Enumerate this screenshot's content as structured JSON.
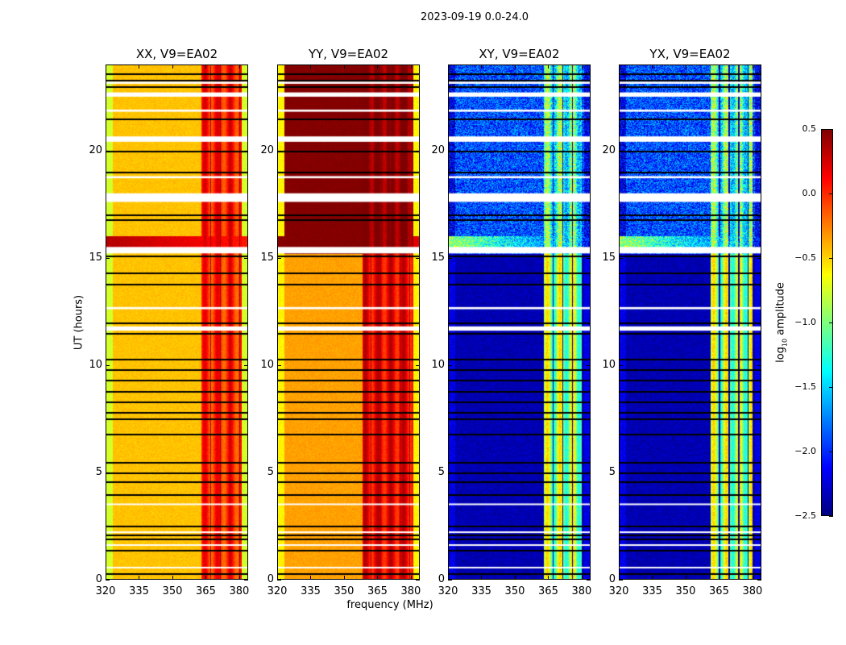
{
  "chart_data": {
    "type": "heatmap",
    "title": "2023-09-19 0.0-24.0",
    "xlabel": "frequency (MHz)",
    "ylabel": "UT (hours)",
    "xlim": [
      320,
      384
    ],
    "ylim": [
      0,
      24
    ],
    "xticks": [
      320,
      335,
      350,
      365,
      380
    ],
    "yticks": [
      0,
      5,
      10,
      15,
      20
    ],
    "colormap": "jet",
    "colorbar": {
      "label_main": "log",
      "label_sub": "10",
      "label_rest": " amplitude",
      "range": [
        -2.5,
        0.5
      ],
      "ticks": [
        "0.5",
        "0.0",
        "−0.5",
        "−1.0",
        "−1.5",
        "−2.0",
        "−2.5"
      ],
      "tick_values": [
        0.5,
        0.0,
        -0.5,
        -1.0,
        -1.5,
        -2.0,
        -2.5
      ]
    },
    "panels": [
      {
        "title": "XX, V9=EA02",
        "base": -0.45,
        "edge": -0.75,
        "band": [
          363,
          381
        ],
        "band_level": 0.0,
        "upper_base": -0.45,
        "upper_band_level": 0.05,
        "storm": [
          15.4,
          16.0
        ],
        "storm_level": 0.35
      },
      {
        "title": "YY, V9=EA02",
        "base": -0.35,
        "edge": -0.6,
        "band": [
          358,
          381
        ],
        "band_level": 0.15,
        "upper_base": 0.5,
        "upper_band_level": 0.5,
        "storm": [
          15.4,
          16.0
        ],
        "storm_level": 0.5
      },
      {
        "title": "XY, V9=EA02",
        "base": -2.35,
        "edge": -2.2,
        "band": [
          363,
          380
        ],
        "band_level": -0.9,
        "upper_base": -1.9,
        "upper_band_level": -1.2,
        "storm": [
          15.4,
          16.0
        ],
        "storm_level": -0.9
      },
      {
        "title": "YX, V9=EA02",
        "base": -2.35,
        "edge": -2.2,
        "band": [
          361,
          380
        ],
        "band_level": -0.9,
        "upper_base": -1.9,
        "upper_band_level": -1.2,
        "storm": [
          15.4,
          16.0
        ],
        "storm_level": -0.9
      }
    ],
    "flagged_rows_ut": [
      0.3,
      1.4,
      1.9,
      2.1,
      2.5,
      4.0,
      4.6,
      5.0,
      5.5,
      6.8,
      7.5,
      7.8,
      8.3,
      8.8,
      9.3,
      9.8,
      10.3,
      11.5,
      12.0,
      13.8,
      14.3,
      15.1,
      16.8,
      17.0,
      19.0,
      20.0,
      21.5,
      23.0,
      23.3,
      23.6
    ],
    "gaps_ut": [
      [
        0.55,
        0.6
      ],
      [
        1.6,
        1.65
      ],
      [
        2.2,
        2.25
      ],
      [
        3.5,
        3.55
      ],
      [
        11.6,
        11.8
      ],
      [
        12.6,
        12.7
      ],
      [
        15.2,
        15.5
      ],
      [
        17.6,
        18.0
      ],
      [
        18.7,
        18.8
      ],
      [
        20.4,
        20.65
      ],
      [
        21.8,
        21.9
      ],
      [
        22.5,
        22.7
      ],
      [
        23.1,
        23.2
      ]
    ]
  }
}
